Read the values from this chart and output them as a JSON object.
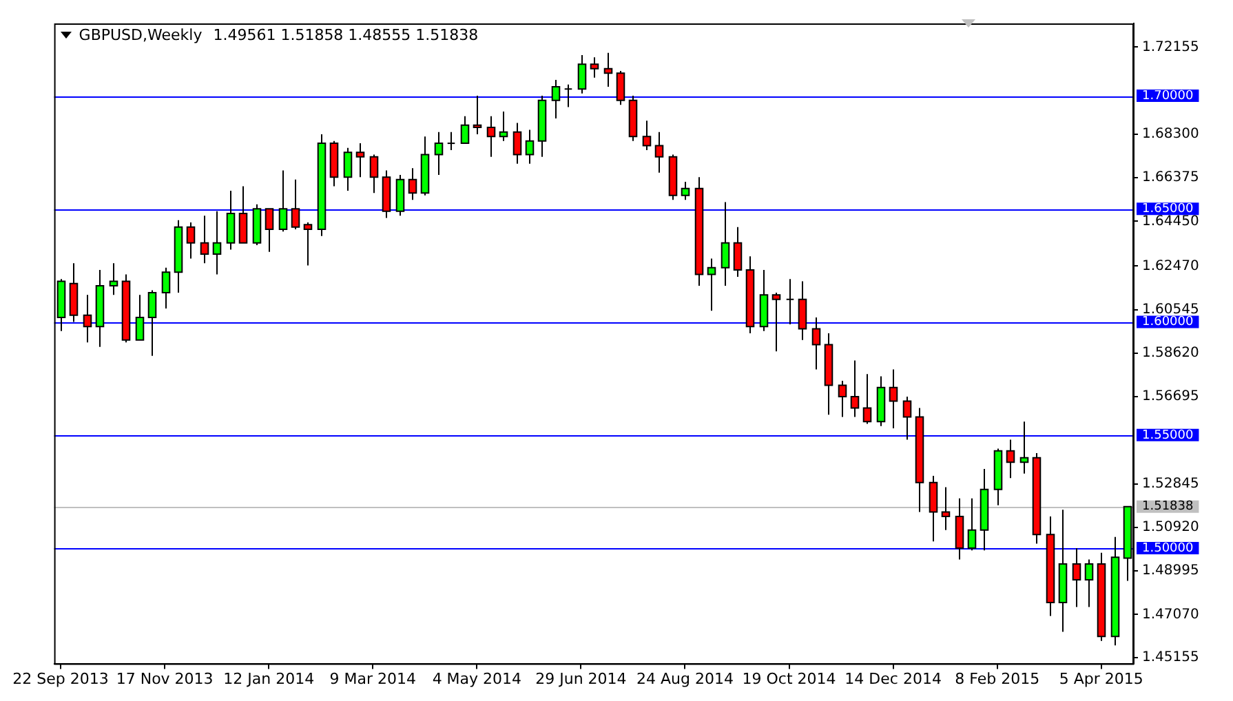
{
  "chart_data": {
    "type": "candlestick",
    "title": "GBPUSD,Weekly",
    "subtitle": "1.49561 1.51858 1.48555 1.51838",
    "categories": [
      "22 Sep 2013",
      null,
      null,
      null,
      null,
      null,
      null,
      null,
      "17 Nov 2013",
      null,
      null,
      null,
      null,
      null,
      null,
      null,
      "12 Jan 2014",
      null,
      null,
      null,
      null,
      null,
      null,
      null,
      "9 Mar 2014",
      null,
      null,
      null,
      null,
      null,
      null,
      null,
      "4 May 2014",
      null,
      null,
      null,
      null,
      null,
      null,
      null,
      "29 Jun 2014",
      null,
      null,
      null,
      null,
      null,
      null,
      null,
      "24 Aug 2014",
      null,
      null,
      null,
      null,
      null,
      null,
      null,
      "19 Oct 2014",
      null,
      null,
      null,
      null,
      null,
      null,
      null,
      "14 Dec 2014",
      null,
      null,
      null,
      null,
      null,
      null,
      null,
      "8 Feb 2015",
      null,
      null,
      null,
      null,
      null,
      null,
      null,
      "5 Apr 2015",
      null,
      null
    ],
    "ohlc": [
      [
        1.602,
        1.619,
        1.596,
        1.618
      ],
      [
        1.617,
        1.626,
        1.6,
        1.603
      ],
      [
        1.603,
        1.612,
        1.591,
        1.598
      ],
      [
        1.598,
        1.623,
        1.589,
        1.616
      ],
      [
        1.616,
        1.626,
        1.612,
        1.618
      ],
      [
        1.618,
        1.621,
        1.591,
        1.592
      ],
      [
        1.592,
        1.612,
        1.592,
        1.602
      ],
      [
        1.602,
        1.614,
        1.585,
        1.613
      ],
      [
        1.613,
        1.624,
        1.606,
        1.622
      ],
      [
        1.622,
        1.645,
        1.613,
        1.642
      ],
      [
        1.642,
        1.644,
        1.628,
        1.635
      ],
      [
        1.635,
        1.647,
        1.626,
        1.63
      ],
      [
        1.63,
        1.649,
        1.621,
        1.635
      ],
      [
        1.635,
        1.658,
        1.632,
        1.648
      ],
      [
        1.648,
        1.66,
        1.635,
        1.635
      ],
      [
        1.635,
        1.652,
        1.634,
        1.65
      ],
      [
        1.65,
        1.65,
        1.631,
        1.641
      ],
      [
        1.641,
        1.667,
        1.64,
        1.65
      ],
      [
        1.65,
        1.663,
        1.641,
        1.642
      ],
      [
        1.643,
        1.644,
        1.625,
        1.641
      ],
      [
        1.641,
        1.683,
        1.638,
        1.679
      ],
      [
        1.679,
        1.68,
        1.66,
        1.664
      ],
      [
        1.664,
        1.677,
        1.658,
        1.675
      ],
      [
        1.675,
        1.679,
        1.664,
        1.673
      ],
      [
        1.673,
        1.674,
        1.657,
        1.664
      ],
      [
        1.664,
        1.667,
        1.646,
        1.649
      ],
      [
        1.649,
        1.665,
        1.647,
        1.663
      ],
      [
        1.663,
        1.668,
        1.654,
        1.657
      ],
      [
        1.657,
        1.682,
        1.656,
        1.674
      ],
      [
        1.674,
        1.684,
        1.665,
        1.679
      ],
      [
        1.679,
        1.684,
        1.676,
        1.679
      ],
      [
        1.679,
        1.691,
        1.679,
        1.687
      ],
      [
        1.687,
        1.7,
        1.683,
        1.686
      ],
      [
        1.686,
        1.691,
        1.673,
        1.682
      ],
      [
        1.682,
        1.693,
        1.68,
        1.684
      ],
      [
        1.684,
        1.688,
        1.67,
        1.674
      ],
      [
        1.674,
        1.685,
        1.67,
        1.68
      ],
      [
        1.68,
        1.7,
        1.673,
        1.698
      ],
      [
        1.698,
        1.707,
        1.69,
        1.704
      ],
      [
        1.703,
        1.705,
        1.695,
        1.703
      ],
      [
        1.703,
        1.718,
        1.701,
        1.714
      ],
      [
        1.714,
        1.717,
        1.708,
        1.712
      ],
      [
        1.712,
        1.719,
        1.704,
        1.71
      ],
      [
        1.71,
        1.711,
        1.696,
        1.698
      ],
      [
        1.698,
        1.7,
        1.68,
        1.682
      ],
      [
        1.682,
        1.689,
        1.676,
        1.678
      ],
      [
        1.678,
        1.684,
        1.666,
        1.673
      ],
      [
        1.673,
        1.674,
        1.654,
        1.656
      ],
      [
        1.656,
        1.662,
        1.654,
        1.659
      ],
      [
        1.659,
        1.664,
        1.616,
        1.621
      ],
      [
        1.621,
        1.628,
        1.605,
        1.624
      ],
      [
        1.624,
        1.653,
        1.616,
        1.635
      ],
      [
        1.635,
        1.642,
        1.62,
        1.623
      ],
      [
        1.623,
        1.629,
        1.595,
        1.598
      ],
      [
        1.598,
        1.623,
        1.596,
        1.612
      ],
      [
        1.612,
        1.613,
        1.587,
        1.61
      ],
      [
        1.61,
        1.619,
        1.599,
        1.61
      ],
      [
        1.61,
        1.618,
        1.592,
        1.597
      ],
      [
        1.597,
        1.602,
        1.579,
        1.59
      ],
      [
        1.59,
        1.595,
        1.559,
        1.572
      ],
      [
        1.572,
        1.574,
        1.558,
        1.567
      ],
      [
        1.567,
        1.583,
        1.558,
        1.562
      ],
      [
        1.562,
        1.577,
        1.555,
        1.556
      ],
      [
        1.556,
        1.576,
        1.554,
        1.571
      ],
      [
        1.571,
        1.579,
        1.553,
        1.565
      ],
      [
        1.565,
        1.567,
        1.548,
        1.558
      ],
      [
        1.558,
        1.562,
        1.516,
        1.529
      ],
      [
        1.529,
        1.532,
        1.503,
        1.516
      ],
      [
        1.516,
        1.527,
        1.508,
        1.514
      ],
      [
        1.514,
        1.522,
        1.495,
        1.5
      ],
      [
        1.5,
        1.522,
        1.499,
        1.508
      ],
      [
        1.508,
        1.535,
        1.499,
        1.526
      ],
      [
        1.526,
        1.544,
        1.519,
        1.543
      ],
      [
        1.543,
        1.548,
        1.531,
        1.538
      ],
      [
        1.538,
        1.556,
        1.533,
        1.54
      ],
      [
        1.54,
        1.542,
        1.502,
        1.506
      ],
      [
        1.506,
        1.514,
        1.47,
        1.476
      ],
      [
        1.476,
        1.517,
        1.463,
        1.493
      ],
      [
        1.493,
        1.5,
        1.474,
        1.486
      ],
      [
        1.486,
        1.495,
        1.474,
        1.493
      ],
      [
        1.493,
        1.498,
        1.459,
        1.461
      ],
      [
        1.461,
        1.505,
        1.457,
        1.496
      ],
      [
        1.49561,
        1.51858,
        1.48555,
        1.51838
      ]
    ],
    "colors": [
      "#00ff00",
      "#ff0000",
      "#ff0000",
      "#00ff00",
      "#00ff00",
      "#ff0000",
      "#00ff00",
      "#00ff00",
      "#00ff00",
      "#00ff00",
      "#ff0000",
      "#ff0000",
      "#00ff00",
      "#00ff00",
      "#ff0000",
      "#00ff00",
      "#ff0000",
      "#00ff00",
      "#ff0000",
      "#ff0000",
      "#00ff00",
      "#ff0000",
      "#00ff00",
      "#ff0000",
      "#ff0000",
      "#ff0000",
      "#00ff00",
      "#ff0000",
      "#00ff00",
      "#00ff00",
      "#000000",
      "#00ff00",
      "#ff0000",
      "#ff0000",
      "#00ff00",
      "#ff0000",
      "#00ff00",
      "#00ff00",
      "#00ff00",
      "#000000",
      "#00ff00",
      "#ff0000",
      "#ff0000",
      "#ff0000",
      "#ff0000",
      "#ff0000",
      "#ff0000",
      "#ff0000",
      "#00ff00",
      "#ff0000",
      "#00ff00",
      "#00ff00",
      "#ff0000",
      "#ff0000",
      "#00ff00",
      "#ff0000",
      "#000000",
      "#ff0000",
      "#ff0000",
      "#ff0000",
      "#ff0000",
      "#ff0000",
      "#ff0000",
      "#00ff00",
      "#ff0000",
      "#ff0000",
      "#ff0000",
      "#ff0000",
      "#ff0000",
      "#ff0000",
      "#00ff00",
      "#00ff00",
      "#00ff00",
      "#ff0000",
      "#00ff00",
      "#ff0000",
      "#ff0000",
      "#00ff00",
      "#ff0000",
      "#00ff00",
      "#ff0000",
      "#00ff00",
      "#00ff00"
    ],
    "ylim": [
      1.449,
      1.732
    ],
    "yticks": [
      {
        "value": 1.72155,
        "label": "1.72155"
      },
      {
        "value": 1.683,
        "label": "1.68300"
      },
      {
        "value": 1.66375,
        "label": "1.66375"
      },
      {
        "value": 1.6445,
        "label": "1.64450"
      },
      {
        "value": 1.6247,
        "label": "1.62470"
      },
      {
        "value": 1.60545,
        "label": "1.60545"
      },
      {
        "value": 1.5862,
        "label": "1.58620"
      },
      {
        "value": 1.56695,
        "label": "1.56695"
      },
      {
        "value": 1.52845,
        "label": "1.52845"
      },
      {
        "value": 1.5092,
        "label": "1.50920"
      },
      {
        "value": 1.48995,
        "label": "1.48995"
      },
      {
        "value": 1.4707,
        "label": "1.47070"
      },
      {
        "value": 1.45155,
        "label": "1.45155"
      }
    ],
    "ref_lines": [
      {
        "axis": "y",
        "value": 1.7,
        "label": "1.70000",
        "color": "#0000ff"
      },
      {
        "axis": "y",
        "value": 1.65,
        "label": "1.65000",
        "color": "#0000ff"
      },
      {
        "axis": "y",
        "value": 1.6,
        "label": "1.60000",
        "color": "#0000ff"
      },
      {
        "axis": "y",
        "value": 1.55,
        "label": "1.55000",
        "color": "#0000ff"
      },
      {
        "axis": "y",
        "value": 1.5,
        "label": "1.50000",
        "color": "#0000ff"
      },
      {
        "axis": "y",
        "value": 1.51838,
        "label": "1.51838",
        "color": "#c0c0c0"
      }
    ]
  }
}
